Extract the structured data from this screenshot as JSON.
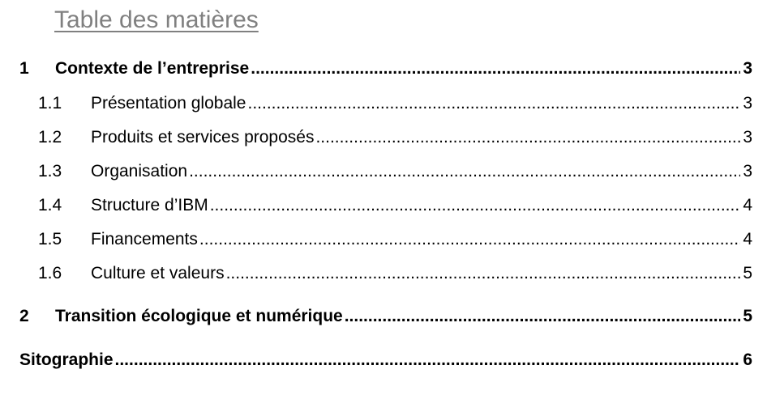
{
  "toc": {
    "title": "Table des matières",
    "entries": [
      {
        "num": "1",
        "label": "Contexte de l’entreprise",
        "page": "3"
      },
      {
        "num": "1.1",
        "label": "Présentation globale",
        "page": "3"
      },
      {
        "num": "1.2",
        "label": "Produits et services proposés",
        "page": "3"
      },
      {
        "num": "1.3",
        "label": "Organisation",
        "page": "3"
      },
      {
        "num": "1.4",
        "label": "Structure d’IBM",
        "page": "4"
      },
      {
        "num": "1.5",
        "label": "Financements",
        "page": "4"
      },
      {
        "num": "1.6",
        "label": "Culture et valeurs",
        "page": "5"
      },
      {
        "num": "2",
        "label": "Transition écologique et numérique",
        "page": "5"
      },
      {
        "label": "Sitographie",
        "page": "6"
      }
    ]
  },
  "colors": {
    "title": "#808080",
    "text": "#000000"
  }
}
